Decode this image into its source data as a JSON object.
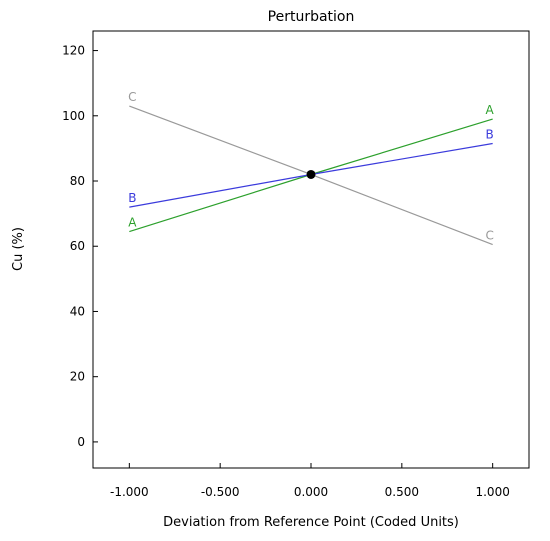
{
  "chart_data": {
    "type": "line",
    "title": "Perturbation",
    "xlabel": "Deviation from Reference Point (Coded Units)",
    "ylabel": "Cu (%)",
    "xlim": [
      -1.2,
      1.2
    ],
    "ylim": [
      -8,
      126
    ],
    "x_ticks": [
      -1.0,
      -0.5,
      0.0,
      0.5,
      1.0
    ],
    "x_tick_labels": [
      "-1.000",
      "-0.500",
      "0.000",
      "0.500",
      "1.000"
    ],
    "y_ticks": [
      0,
      20,
      40,
      60,
      80,
      100,
      120
    ],
    "y_tick_labels": [
      "0",
      "20",
      "40",
      "60",
      "80",
      "100",
      "120"
    ],
    "grid": false,
    "reference_point": {
      "x": 0.0,
      "y": 82
    },
    "series": [
      {
        "name": "A",
        "color": "#2ca02c",
        "x": [
          -1.0,
          0.0,
          1.0
        ],
        "y": [
          64.5,
          82,
          99
        ]
      },
      {
        "name": "B",
        "color": "#3b3bdc",
        "x": [
          -1.0,
          0.0,
          1.0
        ],
        "y": [
          72,
          82,
          91.5
        ]
      },
      {
        "name": "C",
        "color": "#999999",
        "x": [
          -1.0,
          0.0,
          1.0
        ],
        "y": [
          103,
          82,
          60.5
        ]
      }
    ]
  }
}
